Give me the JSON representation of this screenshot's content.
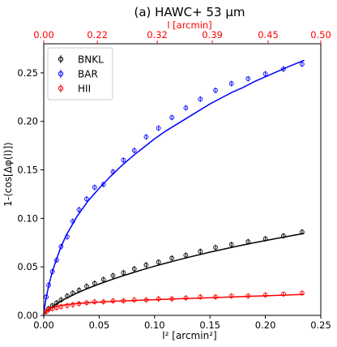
{
  "chart_data": {
    "type": "scatter",
    "title": "(a) HAWC+ 53 μm",
    "xlabel": "l² [arcmin²]",
    "ylabel": "1-⟨cos[Δφ(l)]⟩",
    "top_xlabel": "l [arcmin]",
    "xlim": [
      0.0,
      0.25
    ],
    "ylim": [
      0.0,
      0.28
    ],
    "x_ticks": [
      0.0,
      0.05,
      0.1,
      0.15,
      0.2,
      0.25
    ],
    "x_tick_labels": [
      "0.00",
      "0.05",
      "0.10",
      "0.15",
      "0.20",
      "0.25"
    ],
    "y_ticks": [
      0.0,
      0.05,
      0.1,
      0.15,
      0.2,
      0.25
    ],
    "y_tick_labels": [
      "0.00",
      "0.05",
      "0.10",
      "0.15",
      "0.20",
      "0.25"
    ],
    "top_x_ticks": [
      0.0,
      0.22,
      0.32,
      0.39,
      0.45,
      0.5
    ],
    "top_x_tick_labels": [
      "0.00",
      "0.22",
      "0.32",
      "0.39",
      "0.45",
      "0.50"
    ],
    "top_axis_color": "#ff0000",
    "grid": false,
    "legend_position": "top-left",
    "series": [
      {
        "name": "BNKL",
        "color": "#000000",
        "x": [
          0.0022,
          0.0044,
          0.0078,
          0.0117,
          0.0156,
          0.0212,
          0.0262,
          0.0318,
          0.0387,
          0.0459,
          0.0539,
          0.0625,
          0.0719,
          0.0817,
          0.0924,
          0.1036,
          0.1156,
          0.1282,
          0.1413,
          0.155,
          0.1694,
          0.1844,
          0.2,
          0.2163,
          0.2331
        ],
        "y": [
          0.004,
          0.007,
          0.01,
          0.013,
          0.016,
          0.02,
          0.023,
          0.026,
          0.03,
          0.033,
          0.037,
          0.041,
          0.044,
          0.048,
          0.052,
          0.055,
          0.059,
          0.062,
          0.066,
          0.07,
          0.073,
          0.076,
          0.079,
          0.082,
          0.086
        ],
        "fit_x": [
          0.0,
          0.0005,
          0.001,
          0.002,
          0.004,
          0.007,
          0.01,
          0.015,
          0.02,
          0.03,
          0.04,
          0.05,
          0.06,
          0.07,
          0.08,
          0.09,
          0.1,
          0.11,
          0.12,
          0.13,
          0.14,
          0.15,
          0.16,
          0.17,
          0.18,
          0.19,
          0.2,
          0.21,
          0.22,
          0.235
        ],
        "fit_y": [
          0.0,
          0.0016,
          0.0025,
          0.0037,
          0.0058,
          0.0084,
          0.0107,
          0.0143,
          0.0175,
          0.023,
          0.0279,
          0.0323,
          0.0364,
          0.0403,
          0.0439,
          0.0474,
          0.0507,
          0.0538,
          0.0568,
          0.0597,
          0.0625,
          0.0652,
          0.0677,
          0.0702,
          0.0726,
          0.0749,
          0.0771,
          0.0793,
          0.0814,
          0.0845
        ]
      },
      {
        "name": "BAR",
        "color": "#0000ff",
        "x": [
          0.0022,
          0.0044,
          0.0078,
          0.0117,
          0.0156,
          0.0212,
          0.0262,
          0.0318,
          0.0387,
          0.0459,
          0.0539,
          0.0625,
          0.0719,
          0.0817,
          0.0924,
          0.1036,
          0.1156,
          0.1282,
          0.1413,
          0.155,
          0.1694,
          0.1844,
          0.2,
          0.2163,
          0.2331
        ],
        "y": [
          0.019,
          0.031,
          0.045,
          0.057,
          0.071,
          0.081,
          0.097,
          0.109,
          0.12,
          0.132,
          0.135,
          0.148,
          0.16,
          0.17,
          0.184,
          0.193,
          0.204,
          0.214,
          0.223,
          0.232,
          0.239,
          0.244,
          0.249,
          0.254,
          0.259
        ],
        "fit_x": [
          0.0,
          0.0005,
          0.001,
          0.002,
          0.004,
          0.007,
          0.01,
          0.015,
          0.02,
          0.03,
          0.04,
          0.05,
          0.06,
          0.07,
          0.08,
          0.09,
          0.1,
          0.11,
          0.12,
          0.13,
          0.14,
          0.15,
          0.16,
          0.17,
          0.18,
          0.19,
          0.2,
          0.21,
          0.22,
          0.235
        ],
        "fit_y": [
          0.0,
          0.006,
          0.01,
          0.017,
          0.028,
          0.042,
          0.053,
          0.069,
          0.082,
          0.102,
          0.118,
          0.131,
          0.143,
          0.154,
          0.164,
          0.173,
          0.182,
          0.19,
          0.197,
          0.204,
          0.211,
          0.218,
          0.224,
          0.23,
          0.235,
          0.241,
          0.246,
          0.251,
          0.256,
          0.263
        ]
      },
      {
        "name": "HII",
        "color": "#ff0000",
        "x": [
          0.0022,
          0.0044,
          0.0078,
          0.0117,
          0.0156,
          0.0212,
          0.0262,
          0.0318,
          0.0387,
          0.0459,
          0.0539,
          0.0625,
          0.0719,
          0.0817,
          0.0924,
          0.1036,
          0.1156,
          0.1282,
          0.1413,
          0.155,
          0.1694,
          0.1844,
          0.2,
          0.2163,
          0.2331
        ],
        "y": [
          0.004,
          0.006,
          0.007,
          0.008,
          0.009,
          0.01,
          0.011,
          0.012,
          0.013,
          0.014,
          0.014,
          0.015,
          0.015,
          0.016,
          0.016,
          0.017,
          0.017,
          0.018,
          0.019,
          0.019,
          0.02,
          0.02,
          0.021,
          0.022,
          0.023
        ],
        "fit_x": [
          0.0,
          0.0005,
          0.001,
          0.002,
          0.004,
          0.007,
          0.01,
          0.015,
          0.02,
          0.03,
          0.04,
          0.05,
          0.06,
          0.07,
          0.08,
          0.09,
          0.1,
          0.11,
          0.12,
          0.13,
          0.14,
          0.15,
          0.16,
          0.17,
          0.18,
          0.19,
          0.2,
          0.21,
          0.22,
          0.235
        ],
        "fit_y": [
          0.0,
          0.002,
          0.0031,
          0.0044,
          0.0061,
          0.0077,
          0.0088,
          0.0101,
          0.011,
          0.0122,
          0.0131,
          0.0137,
          0.0143,
          0.0148,
          0.0153,
          0.0158,
          0.0162,
          0.0166,
          0.017,
          0.0174,
          0.0178,
          0.0182,
          0.0186,
          0.019,
          0.0194,
          0.0198,
          0.0202,
          0.0206,
          0.021,
          0.0216
        ]
      }
    ]
  }
}
